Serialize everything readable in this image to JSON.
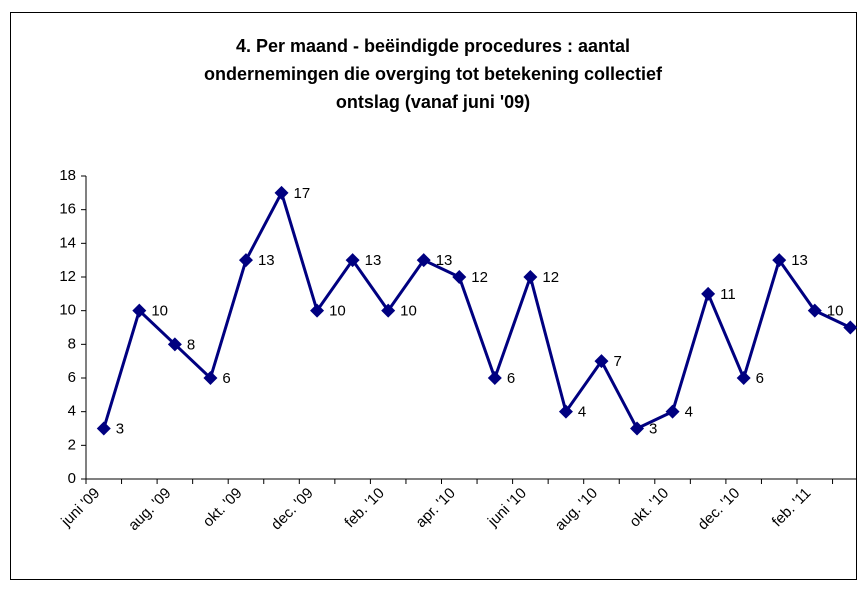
{
  "chart_data": {
    "type": "line",
    "title": [
      "4. Per maand - beëindigde procedures : aantal",
      "ondernemingen die overging tot betekening collectief",
      "ontslag (vanaf juni '09)"
    ],
    "categories": [
      "juni '09",
      null,
      "aug. '09",
      null,
      "okt. '09",
      null,
      "dec. '09",
      null,
      "feb. '10",
      null,
      "apr. '10",
      null,
      "juni '10",
      null,
      "aug. '10",
      null,
      "okt. '10",
      null,
      "dec. '10",
      null,
      "feb. '11",
      null
    ],
    "series": [
      {
        "name": null,
        "color": "#000080",
        "values": [
          3,
          10,
          8,
          6,
          13,
          17,
          10,
          13,
          10,
          13,
          12,
          6,
          12,
          4,
          7,
          3,
          4,
          11,
          6,
          13,
          10,
          9
        ],
        "value_labels": [
          "3",
          "10",
          "8",
          "6",
          "13",
          "17",
          "10",
          "13",
          "10",
          "13",
          "12",
          "6",
          "12",
          "4",
          "7",
          "3",
          "4",
          "11",
          "6",
          "13",
          "10",
          null
        ]
      }
    ],
    "ylim": [
      0,
      18
    ],
    "yticks": [
      0,
      2,
      4,
      6,
      8,
      10,
      12,
      14,
      16,
      18
    ],
    "grid": false
  }
}
